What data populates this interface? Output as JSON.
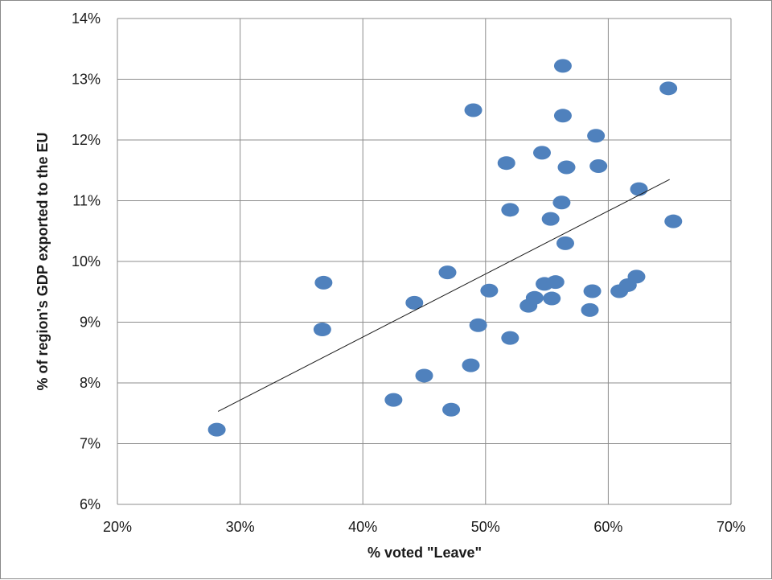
{
  "chart_data": {
    "type": "scatter",
    "xlabel": "% voted \"Leave\"",
    "ylabel": "% of region's GDP exported to the EU",
    "xlim": [
      20,
      70
    ],
    "ylim": [
      6,
      14
    ],
    "x_ticks": [
      20,
      30,
      40,
      50,
      60,
      70
    ],
    "y_ticks": [
      6,
      7,
      8,
      9,
      10,
      11,
      12,
      13,
      14
    ],
    "x_tick_labels": [
      "20%",
      "30%",
      "40%",
      "50%",
      "60%",
      "70%"
    ],
    "y_tick_labels": [
      "6%",
      "7%",
      "8%",
      "9%",
      "10%",
      "11%",
      "12%",
      "13%",
      "14%"
    ],
    "grid": true,
    "legend": "none",
    "point_color": "#4f81bd",
    "trendline_color": "#1a1a1a",
    "trendline": {
      "type": "linear",
      "x": [
        28.2,
        65.0
      ],
      "y": [
        7.53,
        11.35
      ]
    },
    "series": [
      {
        "points": [
          {
            "x": 28.1,
            "y": 7.23
          },
          {
            "x": 36.8,
            "y": 9.65
          },
          {
            "x": 36.7,
            "y": 8.88
          },
          {
            "x": 42.5,
            "y": 7.72
          },
          {
            "x": 44.2,
            "y": 9.32
          },
          {
            "x": 45.0,
            "y": 8.12
          },
          {
            "x": 46.9,
            "y": 9.82
          },
          {
            "x": 47.2,
            "y": 7.56
          },
          {
            "x": 48.8,
            "y": 8.29
          },
          {
            "x": 49.0,
            "y": 12.49
          },
          {
            "x": 49.4,
            "y": 8.95
          },
          {
            "x": 50.3,
            "y": 9.52
          },
          {
            "x": 51.7,
            "y": 11.62
          },
          {
            "x": 52.0,
            "y": 10.85
          },
          {
            "x": 52.0,
            "y": 8.74
          },
          {
            "x": 53.5,
            "y": 9.27
          },
          {
            "x": 54.0,
            "y": 9.4
          },
          {
            "x": 54.6,
            "y": 11.79
          },
          {
            "x": 54.8,
            "y": 9.63
          },
          {
            "x": 55.3,
            "y": 10.7
          },
          {
            "x": 55.4,
            "y": 9.39
          },
          {
            "x": 55.7,
            "y": 9.66
          },
          {
            "x": 56.2,
            "y": 10.97
          },
          {
            "x": 56.3,
            "y": 13.22
          },
          {
            "x": 56.3,
            "y": 12.4
          },
          {
            "x": 56.5,
            "y": 10.3
          },
          {
            "x": 56.6,
            "y": 11.55
          },
          {
            "x": 58.5,
            "y": 9.2
          },
          {
            "x": 58.7,
            "y": 9.51
          },
          {
            "x": 59.0,
            "y": 12.07
          },
          {
            "x": 59.2,
            "y": 11.57
          },
          {
            "x": 60.9,
            "y": 9.51
          },
          {
            "x": 61.6,
            "y": 9.61
          },
          {
            "x": 62.3,
            "y": 9.75
          },
          {
            "x": 62.5,
            "y": 11.19
          },
          {
            "x": 64.9,
            "y": 12.85
          },
          {
            "x": 65.3,
            "y": 10.66
          }
        ]
      }
    ]
  }
}
